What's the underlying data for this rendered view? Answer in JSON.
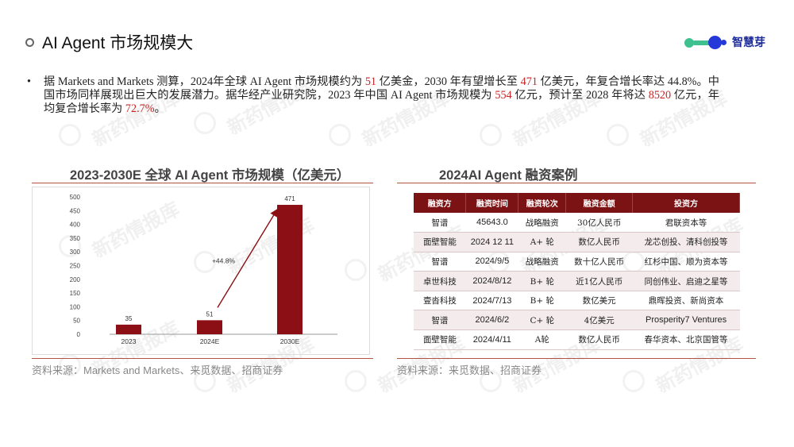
{
  "header": {
    "title": "AI Agent 市场规模大",
    "logo_text": "智慧芽"
  },
  "intro": {
    "bullet": "•",
    "p1": "据 Markets and Markets 测算，2024年全球 AI Agent 市场规模约为 ",
    "v1": "51",
    "p2": " 亿美金，2030 年有望增长至 ",
    "v2": "471",
    "p3": " 亿美元，年复合增长率达  44.8%。中国市场同样展现出巨大的发展潜力。据华经产业研究院，2023  年中国  AI  Agent  市场规模为 ",
    "v3": "554",
    "p4": " 亿元，预计至 2028 年将达 ",
    "v4": "8520",
    "p5": " 亿元，年均复合增长率为 ",
    "v5": "72.7%",
    "p6": "。"
  },
  "left_panel": {
    "title": "2023-2030E 全球 AI Agent 市场规模（亿美元）",
    "source": "资料来源：Markets and Markets、来觅数据、招商证券"
  },
  "right_panel": {
    "title": "2024AI Agent 融资案例",
    "source": "资料来源：来觅数据、招商证券",
    "columns": [
      "融资方",
      "融资时间",
      "融资轮次",
      "融资金额",
      "投资方"
    ],
    "rows": [
      [
        "智谱",
        "45643.0",
        "战略融资",
        "30亿人民币",
        "君联资本等"
      ],
      [
        "面壁智能",
        "2024 12 11",
        "A+ 轮",
        "数亿人民币",
        "龙芯创投、清科创投等"
      ],
      [
        "智谱",
        "2024/9/5",
        "战略融资",
        "数十亿人民币",
        "红杉中国、顺为资本等"
      ],
      [
        "卓世科技",
        "2024/8/12",
        "B+ 轮",
        "近1亿人民币",
        "同创伟业、启迪之星等"
      ],
      [
        "壹沓科技",
        "2024/7/13",
        "B+ 轮",
        "数亿美元",
        "鼎晖投资、新尚资本"
      ],
      [
        "智谱",
        "2024/6/2",
        "C+ 轮",
        "4亿美元",
        "Prosperity7 Ventures"
      ],
      [
        "面壁智能",
        "2024/4/11",
        "A轮",
        "数亿人民币",
        "春华资本、北京国管等"
      ]
    ]
  },
  "chart_data": {
    "type": "bar",
    "categories": [
      "2023",
      "2024E",
      "2030E"
    ],
    "values": [
      35,
      51,
      471
    ],
    "ylim": [
      0,
      500
    ],
    "yticks": [
      0,
      50,
      100,
      150,
      200,
      250,
      300,
      350,
      400,
      450,
      500
    ],
    "annotation": "+44.8%",
    "bar_color": "#8b0f14",
    "title": "2023-2030E 全球 AI Agent 市场规模（亿美元）"
  },
  "watermark": "新药情报库"
}
